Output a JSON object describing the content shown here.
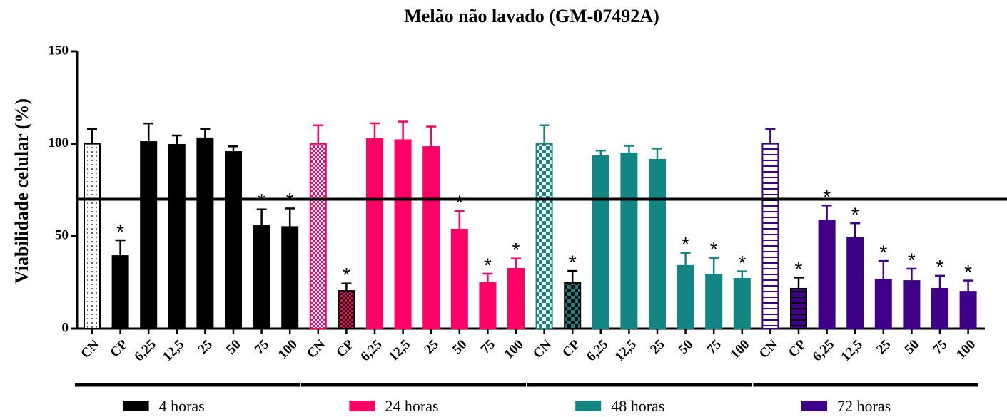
{
  "chart_data": {
    "type": "bar",
    "title": "Melão não lavado (GM-07492A)",
    "ylabel": "Viabilidade celular  (%)",
    "categories": [
      "CN",
      "CP",
      "6,25",
      "12,5",
      "25",
      "50",
      "75",
      "100"
    ],
    "ylim": [
      0,
      150
    ],
    "yticks": [
      0,
      50,
      100,
      150
    ],
    "reference_line": 70,
    "series": [
      {
        "name": "4 horas",
        "color": "#000000",
        "cn_pattern": "dots",
        "cp_pattern": "solid",
        "values": [
          100,
          39.3,
          101,
          99.5,
          103,
          95.6,
          55.5,
          55
        ],
        "errors": [
          8,
          8.5,
          10,
          5,
          5,
          3,
          9,
          10
        ],
        "annotations": [
          null,
          "*",
          null,
          null,
          null,
          null,
          "*",
          "*"
        ]
      },
      {
        "name": "24 horas",
        "color": "#ff0066",
        "cn_pattern": "checker-fine",
        "cp_pattern": "checker-fine",
        "values": [
          100,
          20.4,
          102.6,
          102,
          98.3,
          53.6,
          24.7,
          32.4
        ],
        "errors": [
          10,
          4,
          8.5,
          10,
          11,
          10,
          5,
          5.5
        ],
        "annotations": [
          null,
          "*",
          null,
          null,
          null,
          "*",
          "*",
          "*"
        ]
      },
      {
        "name": "48 horas",
        "color": "#138582",
        "cn_pattern": "checker",
        "cp_pattern": "checker",
        "values": [
          100,
          24.7,
          93.3,
          94.9,
          91.4,
          34,
          29.3,
          27
        ],
        "errors": [
          10,
          6.5,
          3,
          4,
          6,
          7,
          9,
          4
        ],
        "annotations": [
          null,
          "*",
          null,
          null,
          null,
          "*",
          "*",
          "*"
        ]
      },
      {
        "name": "72 horas",
        "color": "#3d0087",
        "cn_pattern": "stripes",
        "cp_pattern": "stripes",
        "values": [
          100,
          21.6,
          58.6,
          49,
          26.6,
          25.8,
          21.6,
          20
        ],
        "errors": [
          8,
          6,
          8,
          8,
          10,
          6.6,
          7,
          6
        ],
        "annotations": [
          null,
          "*",
          "*",
          "*",
          "*",
          "*",
          "*",
          "*"
        ]
      }
    ]
  }
}
